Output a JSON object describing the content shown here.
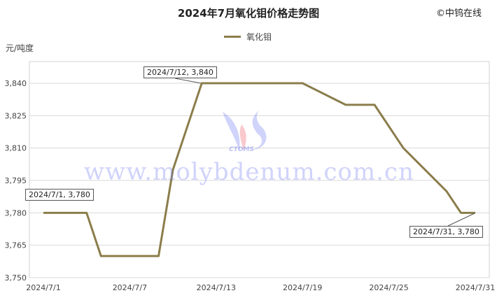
{
  "title": "2024年7月氧化钼价格走势图",
  "copyright": "©中钨在线",
  "watermark": "www.molybdenum.com.cn",
  "logo_text": "CTOMS",
  "chart_data": {
    "type": "line",
    "title": "2024年7月氧化钼价格走势图",
    "ylabel": "元/吨度",
    "xlabel": "",
    "ylim": [
      3750,
      3840
    ],
    "yticks": [
      3750,
      3765,
      3780,
      3795,
      3810,
      3825,
      3840
    ],
    "ytick_labels": [
      "3,750",
      "3,765",
      "3,780",
      "3,795",
      "3,810",
      "3,825",
      "3,840"
    ],
    "xticks": [
      "2024/7/1",
      "2024/7/7",
      "2024/7/13",
      "2024/7/19",
      "2024/7/25",
      "2024/7/31"
    ],
    "grid": true,
    "legend": "top",
    "color": "#8b7d4b",
    "series": [
      {
        "name": "氧化钼",
        "x": [
          "2024/7/1",
          "2024/7/4",
          "2024/7/5",
          "2024/7/9",
          "2024/7/10",
          "2024/7/12",
          "2024/7/19",
          "2024/7/22",
          "2024/7/24",
          "2024/7/26",
          "2024/7/29",
          "2024/7/30",
          "2024/7/31"
        ],
        "values": [
          3780,
          3780,
          3760,
          3760,
          3800,
          3840,
          3840,
          3830,
          3830,
          3810,
          3790,
          3780,
          3780
        ]
      }
    ],
    "annotations": [
      "2024/7/1, 3,780",
      "2024/7/12, 3,840",
      "2024/7/31, 3,780"
    ]
  }
}
